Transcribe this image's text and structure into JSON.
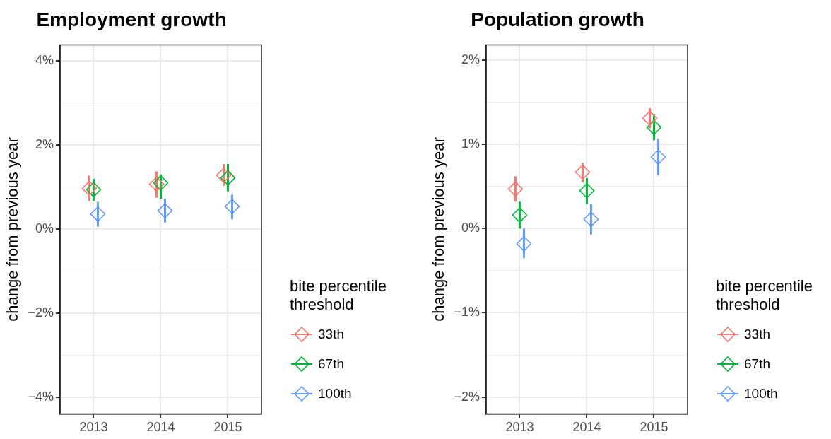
{
  "chart_data": [
    {
      "type": "scatter",
      "title": "Employment growth",
      "ylabel": "change from previous year",
      "legend_title": "bite percentile threshold",
      "legend": "right",
      "grid": true,
      "marker": "diamond",
      "categories": [
        "2013",
        "2014",
        "2015"
      ],
      "ylim": [
        -4.4,
        4.37
      ],
      "yticks": [
        {
          "value": -4,
          "label": "−4%"
        },
        {
          "value": -3,
          "label": null
        },
        {
          "value": -2,
          "label": "−2%"
        },
        {
          "value": -1,
          "label": null
        },
        {
          "value": 0,
          "label": "0%"
        },
        {
          "value": 1,
          "label": null
        },
        {
          "value": 2,
          "label": "2%"
        },
        {
          "value": 3,
          "label": null
        },
        {
          "value": 4,
          "label": "4%"
        }
      ],
      "series": [
        {
          "name": "33th",
          "color": "#f8766d",
          "values": [
            0.96,
            1.06,
            1.27
          ],
          "errors": [
            [
              0.66,
              1.26
            ],
            [
              0.74,
              1.36
            ],
            [
              1.02,
              1.54
            ]
          ]
        },
        {
          "name": "67th",
          "color": "#00ba38",
          "values": [
            0.93,
            1.09,
            1.21
          ],
          "errors": [
            [
              0.66,
              1.19
            ],
            [
              0.71,
              1.29
            ],
            [
              0.89,
              1.54
            ]
          ]
        },
        {
          "name": "100th",
          "color": "#619cff",
          "values": [
            0.35,
            0.43,
            0.53
          ],
          "errors": [
            [
              0.05,
              0.64
            ],
            [
              0.15,
              0.71
            ],
            [
              0.23,
              0.81
            ]
          ]
        }
      ]
    },
    {
      "type": "scatter",
      "title": "Population growth",
      "ylabel": "change from previous year",
      "legend_title": "bite percentile threshold",
      "legend": "right",
      "grid": true,
      "marker": "diamond",
      "categories": [
        "2013",
        "2014",
        "2015"
      ],
      "ylim": [
        -2.2,
        2.18
      ],
      "yticks": [
        {
          "value": -2,
          "label": "−2%"
        },
        {
          "value": -1.5,
          "label": null
        },
        {
          "value": -1,
          "label": "−1%"
        },
        {
          "value": -0.5,
          "label": null
        },
        {
          "value": 0,
          "label": "0%"
        },
        {
          "value": 0.5,
          "label": null
        },
        {
          "value": 1,
          "label": "1%"
        },
        {
          "value": 1.5,
          "label": null
        },
        {
          "value": 2,
          "label": "2%"
        }
      ],
      "series": [
        {
          "name": "33th",
          "color": "#f8766d",
          "values": [
            0.47,
            0.67,
            1.31
          ],
          "errors": [
            [
              0.32,
              0.62
            ],
            [
              0.55,
              0.78
            ],
            [
              1.19,
              1.43
            ]
          ]
        },
        {
          "name": "67th",
          "color": "#00ba38",
          "values": [
            0.16,
            0.45,
            1.2
          ],
          "errors": [
            [
              0.0,
              0.32
            ],
            [
              0.29,
              0.6
            ],
            [
              1.05,
              1.36
            ]
          ]
        },
        {
          "name": "100th",
          "color": "#619cff",
          "values": [
            -0.18,
            0.11,
            0.85
          ],
          "errors": [
            [
              -0.35,
              0.0
            ],
            [
              -0.07,
              0.29
            ],
            [
              0.63,
              1.07
            ]
          ]
        }
      ]
    }
  ]
}
